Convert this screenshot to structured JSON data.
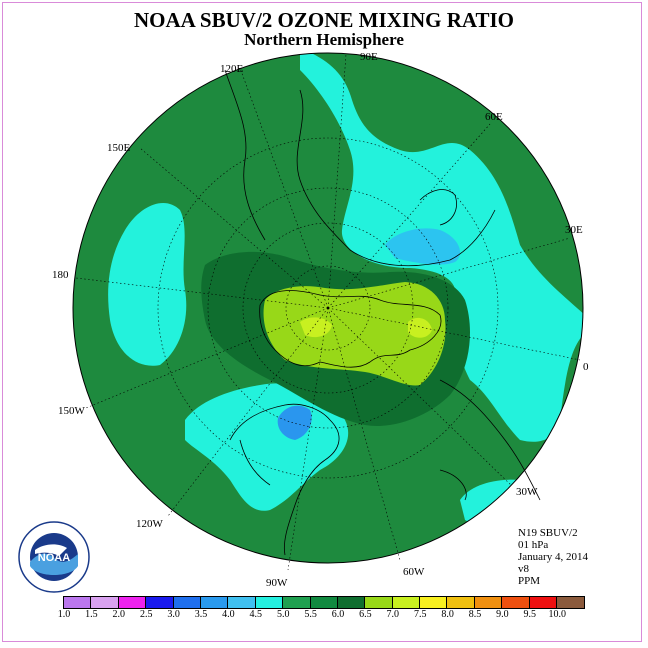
{
  "title": "NOAA SBUV/2 OZONE MIXING RATIO",
  "subtitle": "Northern Hemisphere",
  "longitude_labels": {
    "e120": "120E",
    "e90": "90E",
    "e60": "60E",
    "e150": "150E",
    "e30": "30E",
    "l180": "180",
    "l0": "0",
    "w150": "150W",
    "w30": "30W",
    "w120": "120W",
    "w60": "60W",
    "w90": "90W"
  },
  "info": {
    "satellite": "N19 SBUV/2",
    "level": "01 hPa",
    "date": "January 4, 2014",
    "version": "v8",
    "units": "PPM"
  },
  "logo": {
    "text": "NOAA",
    "ring_text": "NATIONAL OCEANIC AND ATMOSPHERIC ADMINISTRATION · U.S. DEPARTMENT OF COMMERCE"
  },
  "colorbar": {
    "labels": [
      "1.0",
      "1.5",
      "2.0",
      "2.5",
      "3.0",
      "3.5",
      "4.0",
      "4.5",
      "5.0",
      "5.5",
      "6.0",
      "6.5",
      "7.0",
      "7.5",
      "8.0",
      "8.5",
      "9.0",
      "9.5",
      "10.0"
    ],
    "colors": [
      "#bb77ee",
      "#d9a2f0",
      "#ee22ee",
      "#1a1aee",
      "#1f6fee",
      "#2a9aee",
      "#40c0f0",
      "#25f0e0",
      "#1fa050",
      "#118a40",
      "#0f6e2f",
      "#98d818",
      "#c8f020",
      "#f8f020",
      "#f0c010",
      "#f09010",
      "#ee5010",
      "#ee1010",
      "#8b5a3c"
    ]
  },
  "field_colors": {
    "ocean_fill": "#1e8a3e",
    "cyan": "#23f2dc",
    "light_blue": "#2cc4f0",
    "blue": "#2a96ee",
    "dark_green": "#0f6e2f",
    "lime": "#98d818",
    "yellow_green": "#c8f020"
  }
}
